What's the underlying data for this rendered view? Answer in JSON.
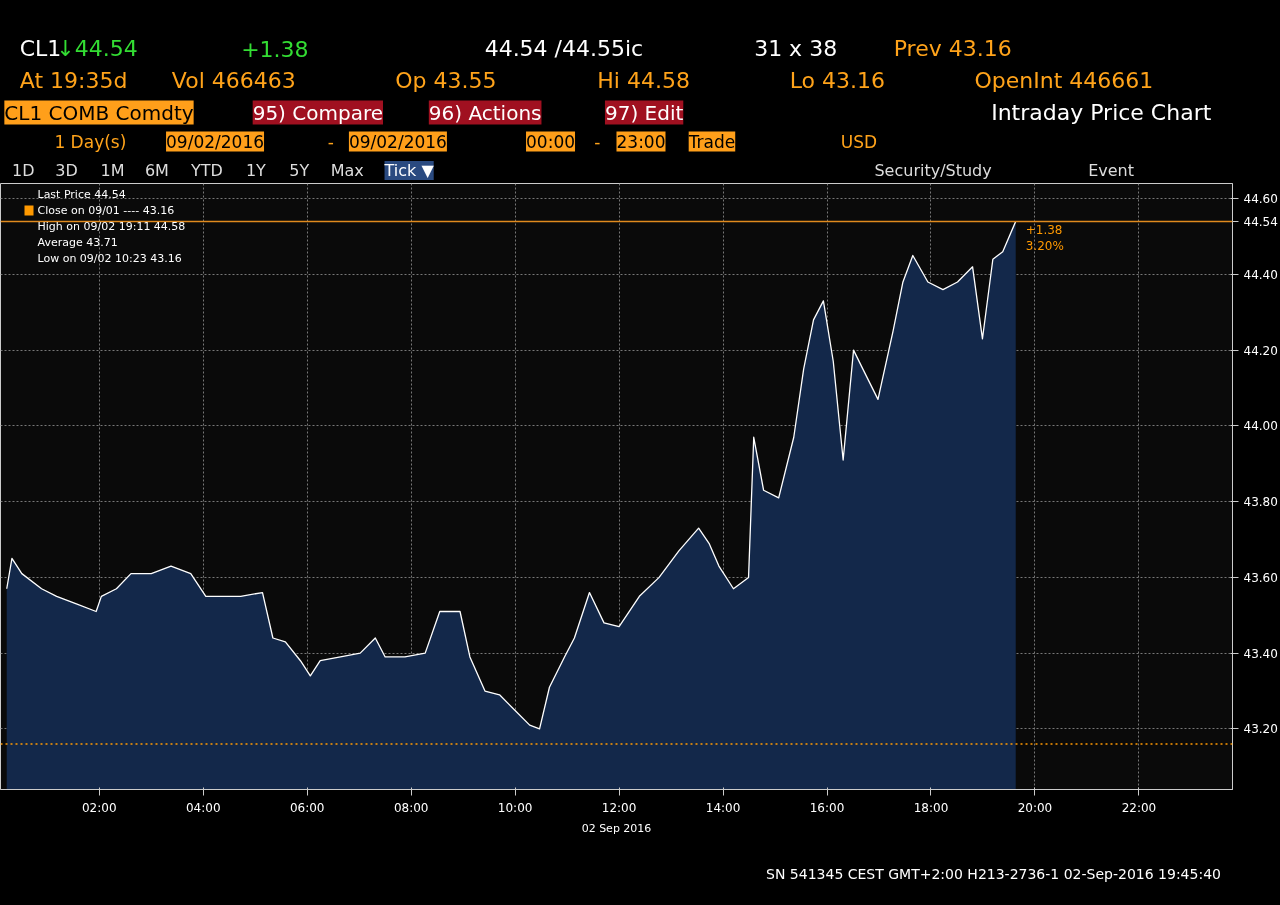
{
  "chart_data": {
    "type": "area",
    "title": "Intraday Price Chart",
    "xlabel": "02 Sep 2016",
    "x": [
      0.22,
      0.32,
      0.51,
      0.89,
      1.18,
      1.56,
      1.94,
      2.04,
      2.33,
      2.61,
      3.0,
      3.38,
      3.76,
      4.05,
      4.34,
      4.72,
      5.14,
      5.34,
      5.58,
      5.87,
      6.06,
      6.25,
      6.64,
      7.02,
      7.31,
      7.5,
      7.88,
      8.27,
      8.55,
      8.94,
      9.13,
      9.42,
      9.7,
      9.99,
      10.28,
      10.47,
      10.66,
      10.95,
      11.14,
      11.43,
      11.71,
      12.0,
      12.39,
      12.77,
      13.15,
      13.53,
      13.73,
      13.92,
      14.2,
      14.49,
      14.59,
      14.78,
      15.07,
      15.36,
      15.55,
      15.74,
      15.93,
      16.12,
      16.31,
      16.51,
      16.69,
      16.98,
      17.27,
      17.46,
      17.65,
      17.94,
      18.23,
      18.51,
      18.8,
      18.99,
      19.19,
      19.38,
      19.63
    ],
    "series": [
      {
        "color": "#ffffff",
        "values": [
          43.57,
          43.65,
          43.61,
          43.57,
          43.55,
          43.53,
          43.51,
          43.55,
          43.57,
          43.61,
          43.61,
          43.63,
          43.61,
          43.55,
          43.55,
          43.55,
          43.56,
          43.44,
          43.43,
          43.38,
          43.34,
          43.38,
          43.39,
          43.4,
          43.44,
          43.39,
          43.39,
          43.4,
          43.51,
          43.51,
          43.39,
          43.3,
          43.29,
          43.25,
          43.21,
          43.2,
          43.31,
          43.39,
          43.44,
          43.56,
          43.48,
          43.47,
          43.55,
          43.6,
          43.67,
          43.73,
          43.69,
          43.63,
          43.57,
          43.6,
          43.97,
          43.83,
          43.81,
          43.97,
          44.15,
          44.28,
          44.33,
          44.17,
          43.91,
          44.2,
          44.15,
          44.07,
          44.25,
          44.38,
          44.45,
          44.38,
          44.36,
          44.38,
          44.42,
          44.23,
          44.44,
          44.46,
          44.54
        ]
      }
    ],
    "xlim": [
      0.1,
      23.8
    ],
    "ylim": [
      43.04,
      44.64
    ],
    "xticks": [
      {
        "value": 2,
        "label": "02:00"
      },
      {
        "value": 4,
        "label": "04:00"
      },
      {
        "value": 6,
        "label": "06:00"
      },
      {
        "value": 8,
        "label": "08:00"
      },
      {
        "value": 10,
        "label": "10:00"
      },
      {
        "value": 12,
        "label": "12:00"
      },
      {
        "value": 14,
        "label": "14:00"
      },
      {
        "value": 16,
        "label": "16:00"
      },
      {
        "value": 18,
        "label": "18:00"
      },
      {
        "value": 20,
        "label": "20:00"
      },
      {
        "value": 22,
        "label": "22:00"
      }
    ],
    "yticks": [
      {
        "value": 43.2,
        "label": "43.20"
      },
      {
        "value": 43.4,
        "label": "43.40"
      },
      {
        "value": 43.6,
        "label": "43.60"
      },
      {
        "value": 43.8,
        "label": "43.80"
      },
      {
        "value": 44.0,
        "label": "44.00"
      },
      {
        "value": 44.2,
        "label": "44.20"
      },
      {
        "value": 44.4,
        "label": "44.40"
      },
      {
        "value": 44.6,
        "label": "44.60"
      }
    ],
    "grid": true,
    "ref_lines": [
      {
        "axis": "y",
        "value": 43.16,
        "label": "Close on 09/01 ---- 43.16",
        "color": "#ff9900",
        "line_style": "dotted"
      },
      {
        "axis": "y",
        "value": 44.54,
        "label": "44.54",
        "color": "#e08a1e",
        "line_style": "solid"
      }
    ],
    "annotations": [
      "CL1",
      "↓44.54",
      "+1.38",
      "44.54 /44.55ic",
      "31 x 38",
      "Prev 43.16",
      "At 19:35d",
      "Vol 466463",
      "Op 43.55",
      "Hi 44.58",
      "Lo 43.16",
      "OpenInt 446661",
      "CL1 COMB Comdty",
      "95) Compare",
      "96) Actions",
      "97) Edit",
      "1 Day(s)",
      "09/02/2016",
      "-",
      "09/02/2016",
      "00:00",
      "-",
      "23:00",
      "Trade",
      "USD",
      "1D",
      "3D",
      "1M",
      "6M",
      "YTD",
      "1Y",
      "5Y",
      "Max",
      "Tick ▼",
      "Security/Study",
      "Event",
      "Last Price 44.54",
      "High on 09/02 19:11 44.58",
      "Average 43.71",
      "Low on 09/02 10:23 43.16",
      "SN 541345 CEST GMT+2:00 H213-2736-1 02-Sep-2016 19:45:40",
      {
        "text": "+1.38",
        "x": 19.63,
        "y": 44.54
      },
      {
        "text": "3.20%",
        "x": 19.63,
        "y": 44.54
      }
    ]
  }
}
